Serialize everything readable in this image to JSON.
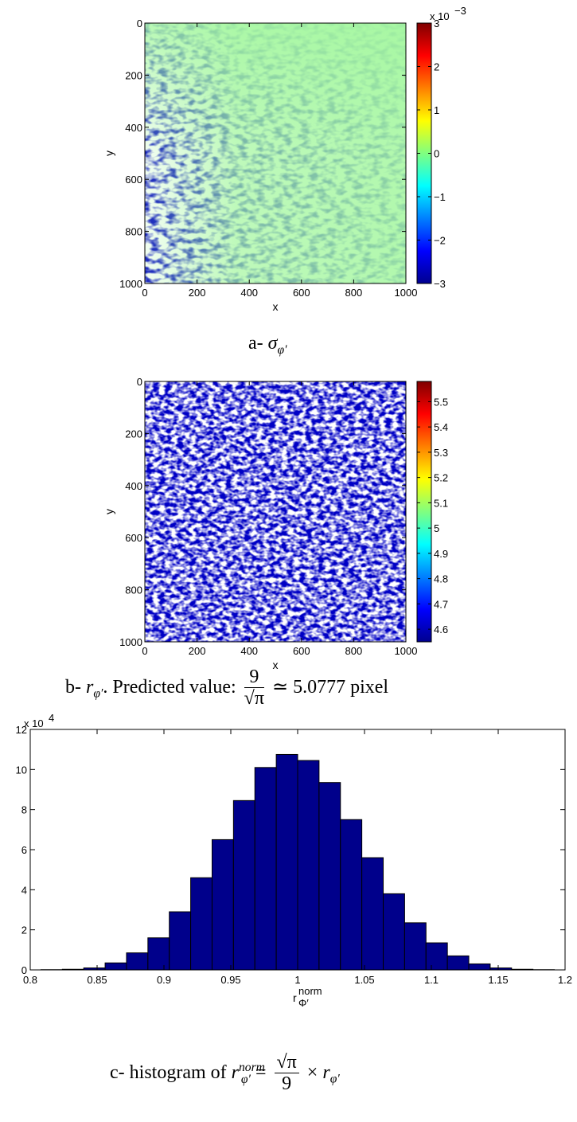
{
  "chart_data": [
    {
      "type": "heatmap",
      "colormap": "jet",
      "x_ticks": [
        "0",
        "200",
        "400",
        "600",
        "800",
        "1000"
      ],
      "y_ticks": [
        "0",
        "200",
        "400",
        "600",
        "800",
        "1000"
      ],
      "xlabel": "x",
      "ylabel": "y",
      "xlim": [
        0,
        1000
      ],
      "ylim": [
        1000,
        0
      ],
      "colorbar": {
        "range": [
          -3,
          3
        ],
        "ticks": [
          "3",
          "2",
          "1",
          "0",
          "−1",
          "−2",
          "−3"
        ],
        "multiplier": "x 10",
        "exponent": "−3"
      },
      "caption": {
        "prefix": "a- ",
        "symbol": "σ",
        "sub": "φ′"
      }
    },
    {
      "type": "heatmap",
      "colormap": "jet",
      "x_ticks": [
        "0",
        "200",
        "400",
        "600",
        "800",
        "1000"
      ],
      "y_ticks": [
        "0",
        "200",
        "400",
        "600",
        "800",
        "1000"
      ],
      "xlabel": "x",
      "ylabel": "y",
      "xlim": [
        0,
        1000
      ],
      "ylim": [
        1000,
        0
      ],
      "colorbar": {
        "range": [
          4.55,
          5.58
        ],
        "ticks": [
          "5.5",
          "5.4",
          "5.3",
          "5.2",
          "5.1",
          "5",
          "4.9",
          "4.8",
          "4.7",
          "4.6"
        ]
      },
      "caption": {
        "prefix": "b- ",
        "symbol": "r",
        "sub": "φ′",
        "mid": ". Predicted value: ",
        "frac_num": "9",
        "frac_den": "√π",
        "suffix": " ≃ 5.0777 pixel"
      }
    },
    {
      "type": "bar",
      "subtype": "histogram",
      "bar_color": "#00008b",
      "xlim": [
        0.8,
        1.2
      ],
      "ylim": [
        0,
        12
      ],
      "y_multiplier": "x 10",
      "y_exponent": "4",
      "x_ticks": [
        "0.8",
        "0.85",
        "0.9",
        "0.95",
        "1",
        "1.05",
        "1.1",
        "1.15",
        "1.2"
      ],
      "y_ticks": [
        "0",
        "2",
        "4",
        "6",
        "8",
        "10",
        "12"
      ],
      "xlabel": "r",
      "xlabel_sup": "norm",
      "xlabel_sub": "Φ′",
      "bin_width": 0.016,
      "bin_centers": [
        0.816,
        0.832,
        0.848,
        0.864,
        0.88,
        0.896,
        0.912,
        0.928,
        0.944,
        0.96,
        0.976,
        0.992,
        1.008,
        1.024,
        1.04,
        1.056,
        1.072,
        1.088,
        1.104,
        1.12,
        1.136,
        1.152,
        1.168,
        1.184
      ],
      "values": [
        0.01,
        0.03,
        0.1,
        0.35,
        0.85,
        1.6,
        2.9,
        4.6,
        6.5,
        8.45,
        10.1,
        10.75,
        10.45,
        9.35,
        7.5,
        5.6,
        3.8,
        2.35,
        1.35,
        0.7,
        0.3,
        0.1,
        0.03,
        0.01
      ],
      "caption": {
        "prefix": "c- histogram of ",
        "symbol": "r",
        "sub": "φ′",
        "sup": "norm",
        "eq": " = ",
        "frac_num": "√π",
        "frac_den": "9",
        "times": " × ",
        "symbol2": "r",
        "sub2": "φ′"
      }
    }
  ]
}
